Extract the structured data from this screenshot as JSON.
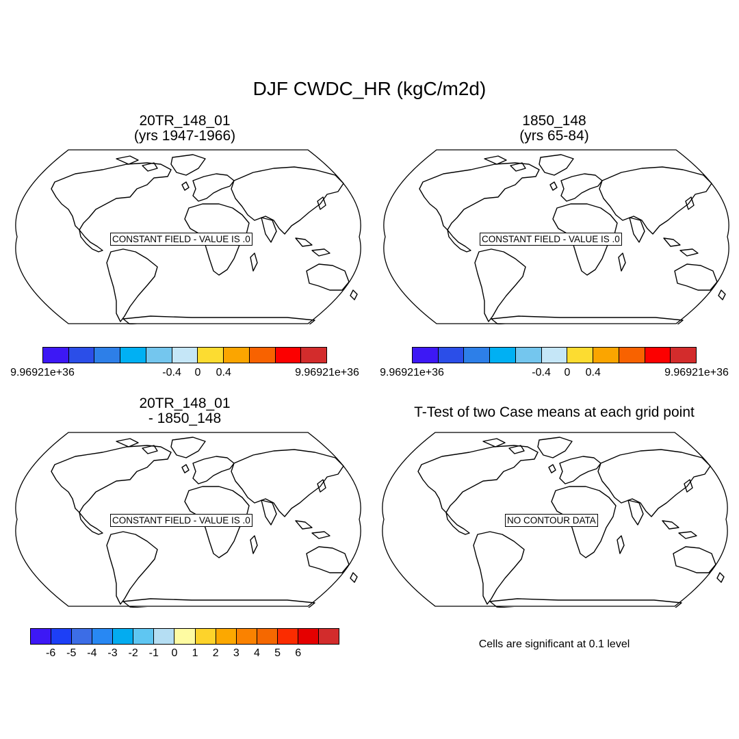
{
  "main_title": "DJF CWDC_HR (kgC/m2d)",
  "panels": {
    "top_left": {
      "title_line1": "20TR_148_01",
      "title_line2": "(yrs 1947-1966)",
      "field_label": "CONSTANT FIELD - VALUE IS .0"
    },
    "top_right": {
      "title_line1": "1850_148",
      "title_line2": "(yrs 65-84)",
      "field_label": "CONSTANT FIELD - VALUE IS .0"
    },
    "bottom_left": {
      "title_line1": "20TR_148_01",
      "title_line2": "- 1850_148",
      "field_label": "CONSTANT FIELD - VALUE IS .0"
    },
    "bottom_right": {
      "title_line1": "T-Test of two Case means at each grid point",
      "field_label": "NO CONTOUR DATA"
    }
  },
  "note": "Cells are significant at 0.1 level",
  "chart_data": [
    {
      "type": "heatmap",
      "title": "20TR_148_01 (yrs 1947-1966)",
      "projection": "Robinson",
      "constant_value": 0,
      "colorbar": {
        "colors": [
          "#3d18f5",
          "#2b4ee8",
          "#2d7fe8",
          "#00b0f3",
          "#74c6ee",
          "#c5e6f7",
          "#fcdc31",
          "#fba500",
          "#f86200",
          "#fc0000",
          "#d32c2c"
        ],
        "tick_labels": [
          "9.96921e+36",
          "-0.4",
          "0",
          "0.4",
          "9.96921e+36"
        ]
      }
    },
    {
      "type": "heatmap",
      "title": "1850_148 (yrs 65-84)",
      "projection": "Robinson",
      "constant_value": 0,
      "colorbar": {
        "colors": [
          "#3d18f5",
          "#2b4ee8",
          "#2d7fe8",
          "#00b0f3",
          "#74c6ee",
          "#c5e6f7",
          "#fcdc31",
          "#fba500",
          "#f86200",
          "#fc0000",
          "#d32c2c"
        ],
        "tick_labels": [
          "9.96921e+36",
          "-0.4",
          "0",
          "0.4",
          "9.96921e+36"
        ]
      }
    },
    {
      "type": "heatmap",
      "title": "20TR_148_01 - 1850_148",
      "projection": "Robinson",
      "constant_value": 0,
      "colorbar": {
        "colors": [
          "#3d18f5",
          "#1d3ff6",
          "#3c6de6",
          "#2888f3",
          "#03acf0",
          "#5fc6f2",
          "#b5def3",
          "#fefba2",
          "#fdd32b",
          "#fca800",
          "#fa8200",
          "#f56800",
          "#fb2c00",
          "#e50000",
          "#d22c2c"
        ],
        "tick_labels": [
          "-6",
          "-5",
          "-4",
          "-3",
          "-2",
          "-1",
          "0",
          "1",
          "2",
          "3",
          "4",
          "5",
          "6"
        ]
      }
    },
    {
      "type": "heatmap",
      "title": "T-Test of two Case means at each grid point",
      "projection": "Robinson",
      "significance_level": 0.1
    }
  ]
}
